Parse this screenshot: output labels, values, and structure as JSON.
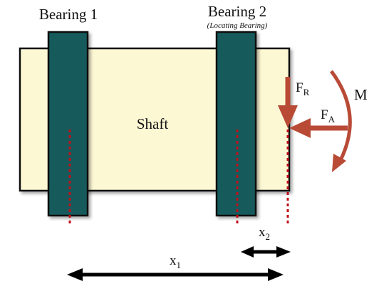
{
  "bearing1": {
    "label": "Bearing 1"
  },
  "bearing2": {
    "label": "Bearing 2",
    "note": "(Locating Bearing)"
  },
  "shaft": {
    "label": "Shaft"
  },
  "forces": {
    "radial": {
      "symbol": "F",
      "subscript": "R"
    },
    "axial": {
      "symbol": "F",
      "subscript": "A"
    },
    "moment": {
      "symbol": "M"
    }
  },
  "dimensions": {
    "x1": {
      "symbol": "x",
      "subscript": "1"
    },
    "x2": {
      "symbol": "x",
      "subscript": "2"
    }
  },
  "colors": {
    "shaft_fill": "#FDF8D4",
    "bearing_fill": "#145A5C",
    "force_arrow": "#B84A36",
    "dashed_line": "#C0101A",
    "outline": "#111111"
  }
}
